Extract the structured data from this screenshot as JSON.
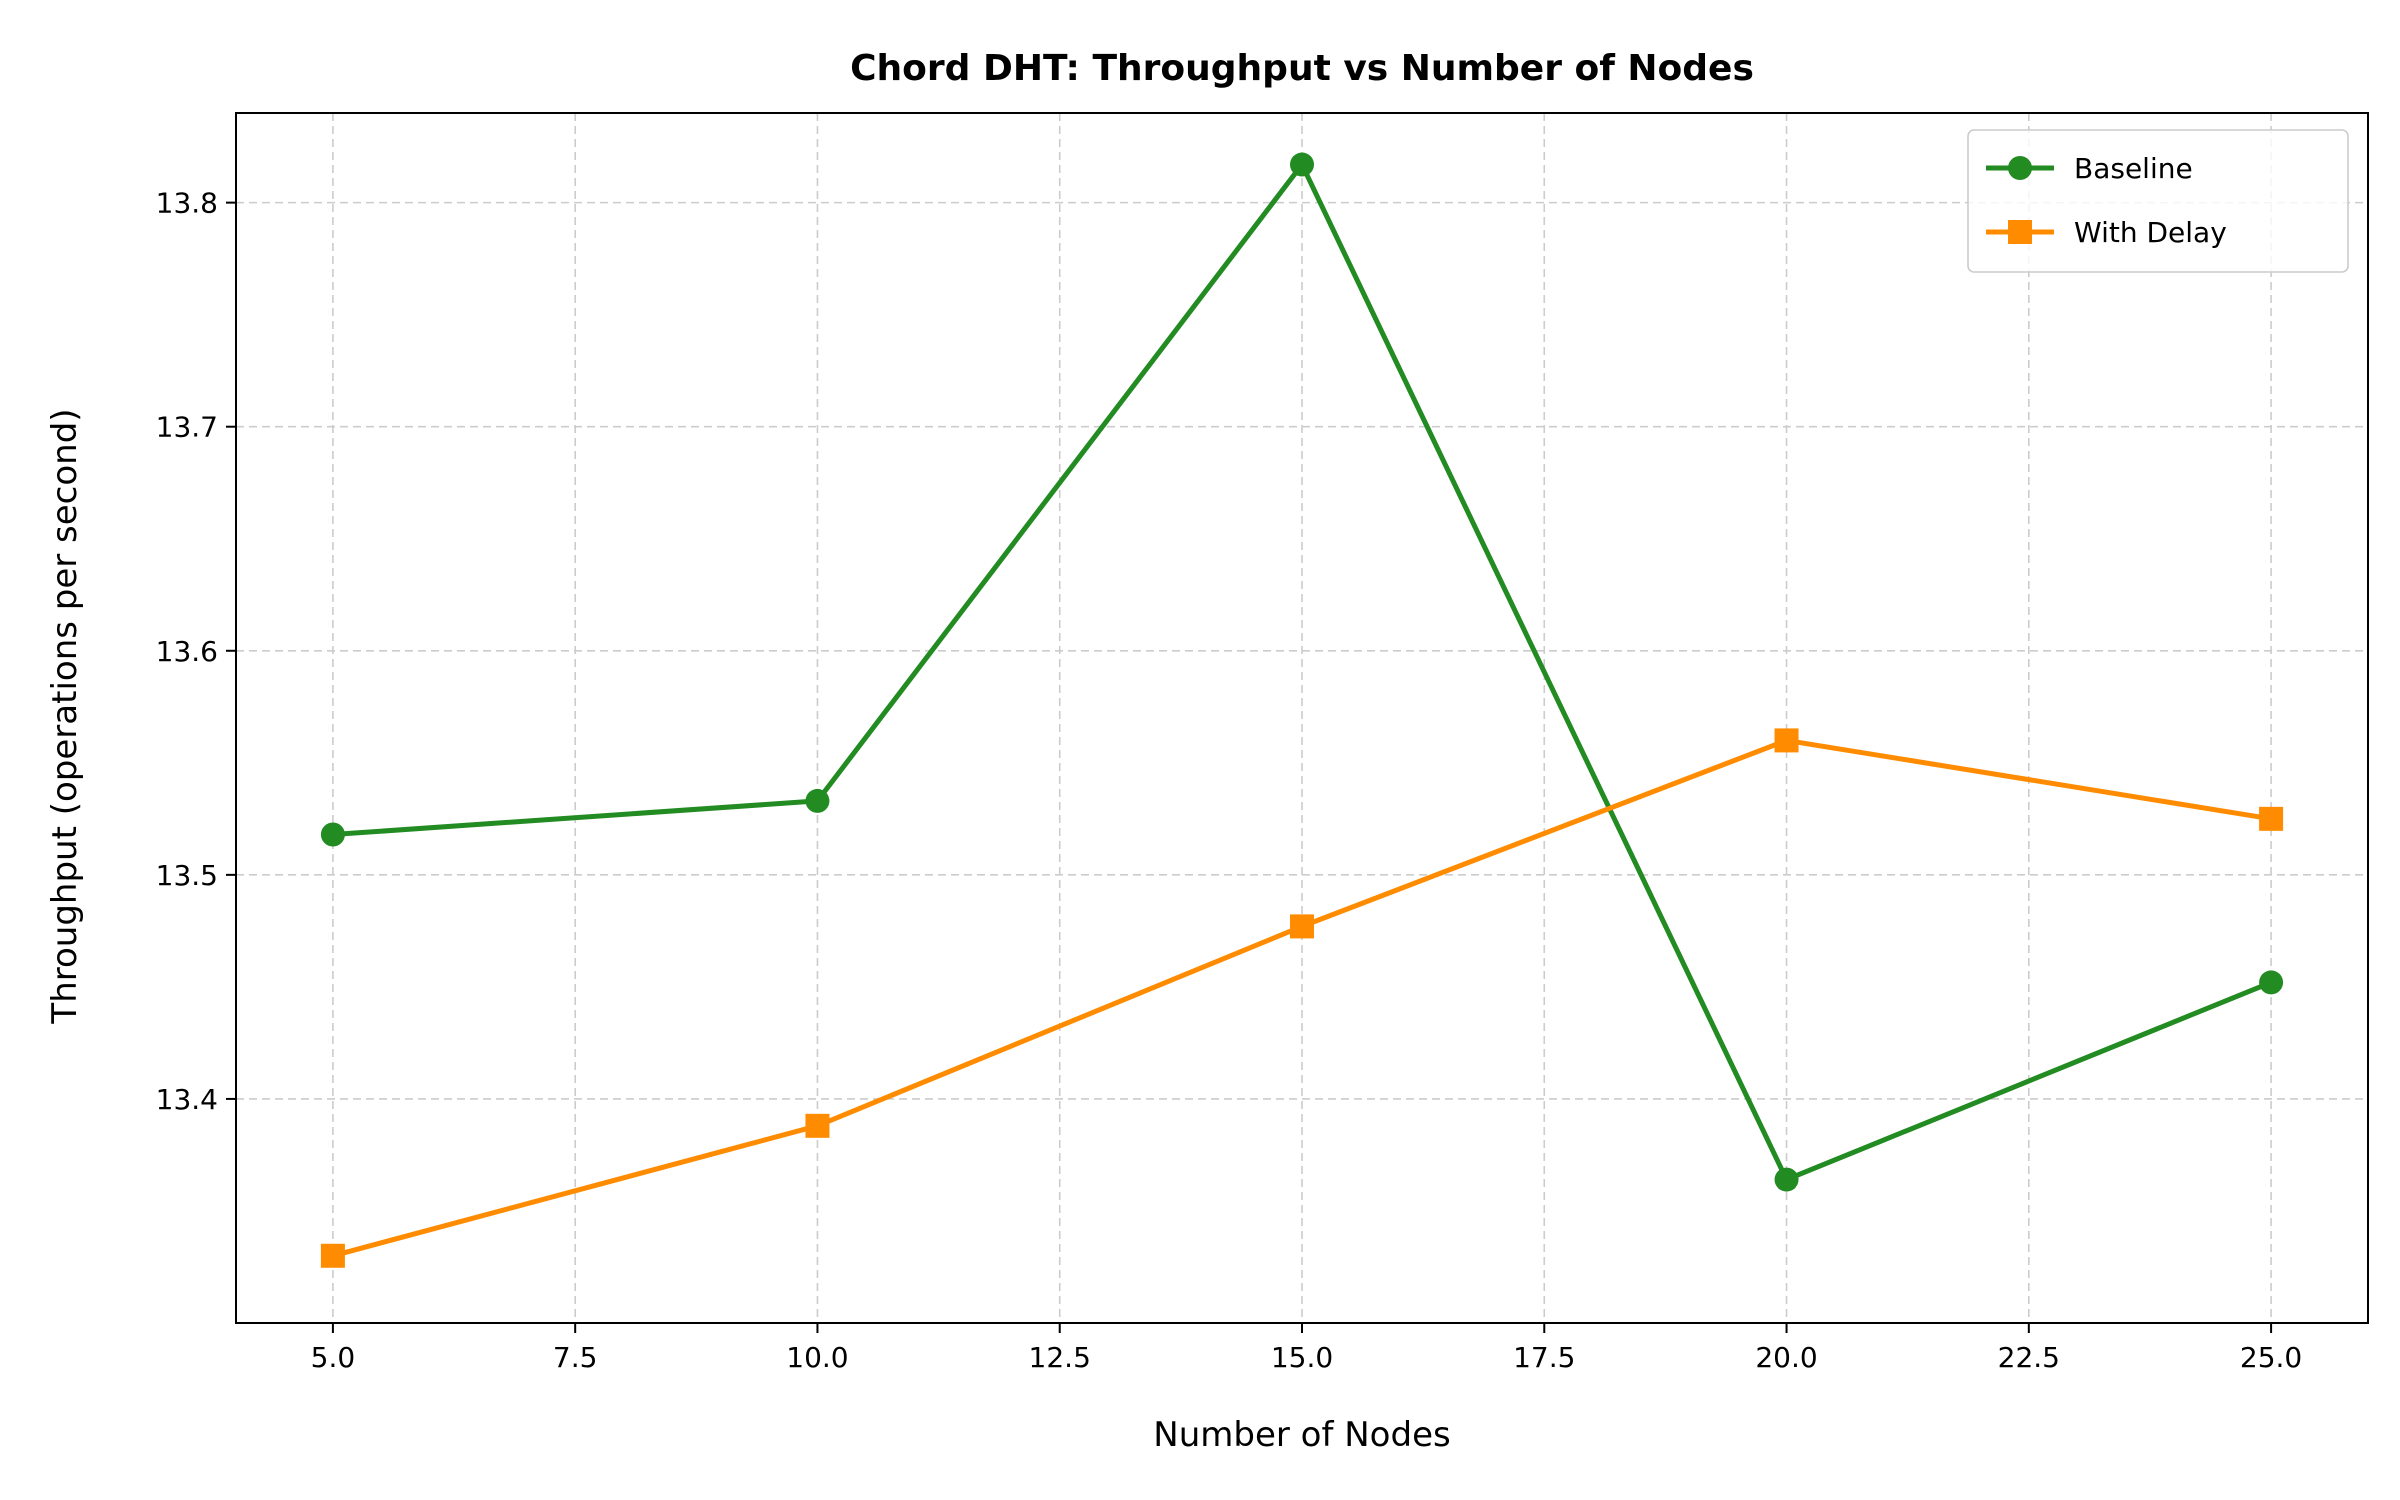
{
  "chart_data": {
    "type": "line",
    "title": "Chord DHT: Throughput vs Number of Nodes",
    "xlabel": "Number of Nodes",
    "ylabel": "Throughput (operations per second)",
    "x": [
      5,
      10,
      15,
      20,
      25
    ],
    "xlim": [
      4.0,
      26.0
    ],
    "ylim": [
      13.3,
      13.84
    ],
    "xticks": [
      "5.0",
      "7.5",
      "10.0",
      "12.5",
      "15.0",
      "17.5",
      "20.0",
      "22.5",
      "25.0"
    ],
    "yticks": [
      "13.4",
      "13.5",
      "13.6",
      "13.7",
      "13.8"
    ],
    "grid": true,
    "legend_position": "top-right",
    "series": [
      {
        "name": "Baseline",
        "color": "#228b22",
        "marker": "circle",
        "values": [
          13.518,
          13.533,
          13.817,
          13.364,
          13.452
        ]
      },
      {
        "name": "With Delay",
        "color": "#ff8c00",
        "marker": "square",
        "values": [
          13.33,
          13.388,
          13.477,
          13.56,
          13.525
        ]
      }
    ]
  }
}
